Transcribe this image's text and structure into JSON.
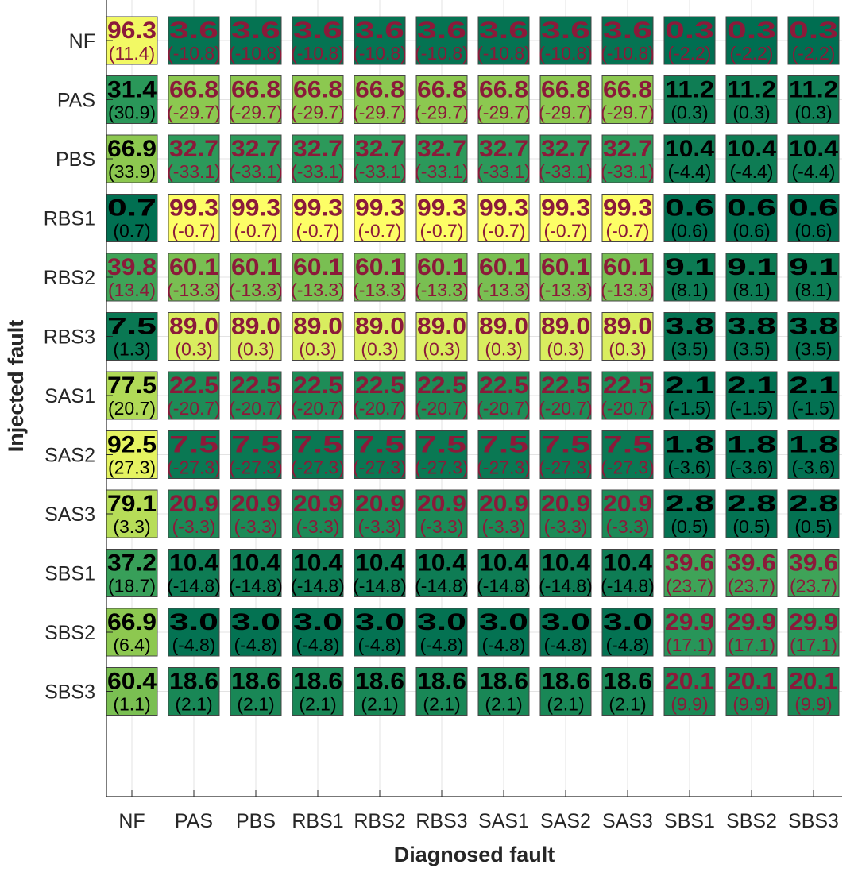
{
  "chart_data": {
    "type": "heatmap",
    "title": "",
    "xlabel": "Diagnosed fault",
    "ylabel": "Injected fault",
    "x_categories": [
      "NF",
      "PAS",
      "PBS",
      "RBS1",
      "RBS2",
      "RBS3",
      "SAS1",
      "SAS2",
      "SAS3",
      "SBS1",
      "SBS2",
      "SBS3"
    ],
    "y_categories": [
      "NF",
      "PAS",
      "PBS",
      "RBS1",
      "RBS2",
      "RBS3",
      "SAS1",
      "SAS2",
      "SAS3",
      "SBS1",
      "SBS2",
      "SBS3"
    ],
    "grid": true,
    "colormap": [
      "#006e51",
      "#2d9a5a",
      "#8cc850",
      "#ffff66"
    ],
    "values": [
      [
        "96.3",
        "3.6",
        "3.6",
        "3.6",
        "3.6",
        "3.6",
        "3.6",
        "3.6",
        "3.6",
        "0.3",
        "0.3",
        "0.3"
      ],
      [
        "31.4",
        "66.8",
        "66.8",
        "66.8",
        "66.8",
        "66.8",
        "66.8",
        "66.8",
        "66.8",
        "11.2",
        "11.2",
        "11.2"
      ],
      [
        "66.9",
        "32.7",
        "32.7",
        "32.7",
        "32.7",
        "32.7",
        "32.7",
        "32.7",
        "32.7",
        "10.4",
        "10.4",
        "10.4"
      ],
      [
        "0.7",
        "99.3",
        "99.3",
        "99.3",
        "99.3",
        "99.3",
        "99.3",
        "99.3",
        "99.3",
        "0.6",
        "0.6",
        "0.6"
      ],
      [
        "39.8",
        "60.1",
        "60.1",
        "60.1",
        "60.1",
        "60.1",
        "60.1",
        "60.1",
        "60.1",
        "9.1",
        "9.1",
        "9.1"
      ],
      [
        "7.5",
        "89.0",
        "89.0",
        "89.0",
        "89.0",
        "89.0",
        "89.0",
        "89.0",
        "89.0",
        "3.8",
        "3.8",
        "3.8"
      ],
      [
        "77.5",
        "22.5",
        "22.5",
        "22.5",
        "22.5",
        "22.5",
        "22.5",
        "22.5",
        "22.5",
        "2.1",
        "2.1",
        "2.1"
      ],
      [
        "92.5",
        "7.5",
        "7.5",
        "7.5",
        "7.5",
        "7.5",
        "7.5",
        "7.5",
        "7.5",
        "1.8",
        "1.8",
        "1.8"
      ],
      [
        "79.1",
        "20.9",
        "20.9",
        "20.9",
        "20.9",
        "20.9",
        "20.9",
        "20.9",
        "20.9",
        "2.8",
        "2.8",
        "2.8"
      ],
      [
        "37.2",
        "10.4",
        "10.4",
        "10.4",
        "10.4",
        "10.4",
        "10.4",
        "10.4",
        "10.4",
        "39.6",
        "39.6",
        "39.6"
      ],
      [
        "66.9",
        "3.0",
        "3.0",
        "3.0",
        "3.0",
        "3.0",
        "3.0",
        "3.0",
        "3.0",
        "29.9",
        "29.9",
        "29.9"
      ],
      [
        "60.4",
        "18.6",
        "18.6",
        "18.6",
        "18.6",
        "18.6",
        "18.6",
        "18.6",
        "18.6",
        "20.1",
        "20.1",
        "20.1"
      ]
    ],
    "deltas": [
      [
        "(11.4)",
        "(-10.8)",
        "(-10.8)",
        "(-10.8)",
        "(-10.8)",
        "(-10.8)",
        "(-10.8)",
        "(-10.8)",
        "(-10.8)",
        "(-2.2)",
        "(-2.2)",
        "(-2.2)"
      ],
      [
        "(30.9)",
        "(-29.7)",
        "(-29.7)",
        "(-29.7)",
        "(-29.7)",
        "(-29.7)",
        "(-29.7)",
        "(-29.7)",
        "(-29.7)",
        "(0.3)",
        "(0.3)",
        "(0.3)"
      ],
      [
        "(33.9)",
        "(-33.1)",
        "(-33.1)",
        "(-33.1)",
        "(-33.1)",
        "(-33.1)",
        "(-33.1)",
        "(-33.1)",
        "(-33.1)",
        "(-4.4)",
        "(-4.4)",
        "(-4.4)"
      ],
      [
        "(0.7)",
        "(-0.7)",
        "(-0.7)",
        "(-0.7)",
        "(-0.7)",
        "(-0.7)",
        "(-0.7)",
        "(-0.7)",
        "(-0.7)",
        "(0.6)",
        "(0.6)",
        "(0.6)"
      ],
      [
        "(13.4)",
        "(-13.3)",
        "(-13.3)",
        "(-13.3)",
        "(-13.3)",
        "(-13.3)",
        "(-13.3)",
        "(-13.3)",
        "(-13.3)",
        "(8.1)",
        "(8.1)",
        "(8.1)"
      ],
      [
        "(1.3)",
        "(0.3)",
        "(0.3)",
        "(0.3)",
        "(0.3)",
        "(0.3)",
        "(0.3)",
        "(0.3)",
        "(0.3)",
        "(3.5)",
        "(3.5)",
        "(3.5)"
      ],
      [
        "(20.7)",
        "(-20.7)",
        "(-20.7)",
        "(-20.7)",
        "(-20.7)",
        "(-20.7)",
        "(-20.7)",
        "(-20.7)",
        "(-20.7)",
        "(-1.5)",
        "(-1.5)",
        "(-1.5)"
      ],
      [
        "(27.3)",
        "(-27.3)",
        "(-27.3)",
        "(-27.3)",
        "(-27.3)",
        "(-27.3)",
        "(-27.3)",
        "(-27.3)",
        "(-27.3)",
        "(-3.6)",
        "(-3.6)",
        "(-3.6)"
      ],
      [
        "(3.3)",
        "(-3.3)",
        "(-3.3)",
        "(-3.3)",
        "(-3.3)",
        "(-3.3)",
        "(-3.3)",
        "(-3.3)",
        "(-3.3)",
        "(0.5)",
        "(0.5)",
        "(0.5)"
      ],
      [
        "(18.7)",
        "(-14.8)",
        "(-14.8)",
        "(-14.8)",
        "(-14.8)",
        "(-14.8)",
        "(-14.8)",
        "(-14.8)",
        "(-14.8)",
        "(23.7)",
        "(23.7)",
        "(23.7)"
      ],
      [
        "(6.4)",
        "(-4.8)",
        "(-4.8)",
        "(-4.8)",
        "(-4.8)",
        "(-4.8)",
        "(-4.8)",
        "(-4.8)",
        "(-4.8)",
        "(17.1)",
        "(17.1)",
        "(17.1)"
      ],
      [
        "(1.1)",
        "(2.1)",
        "(2.1)",
        "(2.1)",
        "(2.1)",
        "(2.1)",
        "(2.1)",
        "(2.1)",
        "(2.1)",
        "(9.9)",
        "(9.9)",
        "(9.9)"
      ]
    ],
    "text_color": [
      [
        "red",
        "red",
        "red",
        "red",
        "red",
        "red",
        "red",
        "red",
        "red",
        "red",
        "red",
        "red"
      ],
      [
        "black",
        "red",
        "red",
        "red",
        "red",
        "red",
        "red",
        "red",
        "red",
        "black",
        "black",
        "black"
      ],
      [
        "black",
        "red",
        "red",
        "red",
        "red",
        "red",
        "red",
        "red",
        "red",
        "black",
        "black",
        "black"
      ],
      [
        "black",
        "red",
        "red",
        "red",
        "red",
        "red",
        "red",
        "red",
        "red",
        "black",
        "black",
        "black"
      ],
      [
        "red",
        "red",
        "red",
        "red",
        "red",
        "red",
        "red",
        "red",
        "red",
        "black",
        "black",
        "black"
      ],
      [
        "black",
        "red",
        "red",
        "red",
        "red",
        "red",
        "red",
        "red",
        "red",
        "black",
        "black",
        "black"
      ],
      [
        "black",
        "red",
        "red",
        "red",
        "red",
        "red",
        "red",
        "red",
        "red",
        "black",
        "black",
        "black"
      ],
      [
        "black",
        "red",
        "red",
        "red",
        "red",
        "red",
        "red",
        "red",
        "red",
        "black",
        "black",
        "black"
      ],
      [
        "black",
        "red",
        "red",
        "red",
        "red",
        "red",
        "red",
        "red",
        "red",
        "black",
        "black",
        "black"
      ],
      [
        "black",
        "black",
        "black",
        "black",
        "black",
        "black",
        "black",
        "black",
        "black",
        "red",
        "red",
        "red"
      ],
      [
        "black",
        "black",
        "black",
        "black",
        "black",
        "black",
        "black",
        "black",
        "black",
        "red",
        "red",
        "red"
      ],
      [
        "black",
        "black",
        "black",
        "black",
        "black",
        "black",
        "black",
        "black",
        "black",
        "red",
        "red",
        "red"
      ]
    ],
    "text_colors": {
      "red": "#8b1a3a",
      "black": "#000000"
    },
    "cell_border_color": "#444444",
    "grid_color": "#e3e3e3",
    "axis_color": "#262626"
  }
}
